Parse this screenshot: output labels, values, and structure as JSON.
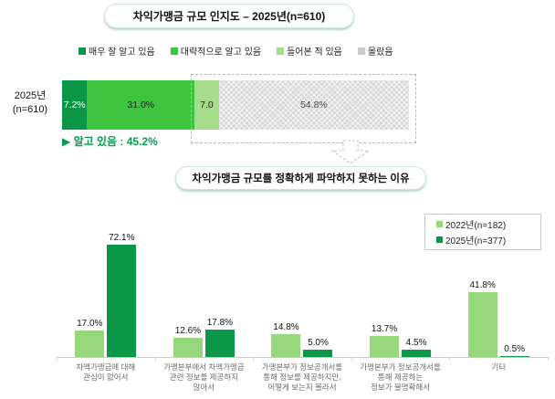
{
  "colors": {
    "dark_green": "#0c9648",
    "mid_green": "#3ec43e",
    "light_green": "#97d87c",
    "segment_light_green": "#a6dc8c",
    "unknown_gray": "#d8d8d8",
    "note_green": "#00a04e"
  },
  "chart_data": [
    {
      "type": "bar",
      "subtype": "horizontal-stacked",
      "title": "차익가맹금 규모 인지도 – 2025년(n=610)",
      "row_label": "2025년\n(n=610)",
      "xlim": [
        0,
        100
      ],
      "segments": [
        {
          "name": "매우 잘 알고 있음",
          "value": 7.2,
          "display": "7.2%",
          "color": "#0c9648",
          "text_color": "#ffffff",
          "hatched": false
        },
        {
          "name": "대략적으로 알고 있음",
          "value": 31.0,
          "display": "31.0%",
          "color": "#3ec43e",
          "text_color": "#1d1d1d",
          "hatched": false
        },
        {
          "name": "들어본 적 있음",
          "value": 7.0,
          "display": "7.0",
          "color": "#a6dc8c",
          "text_color": "#1d1d1d",
          "hatched": false
        },
        {
          "name": "몰랐음",
          "value": 54.8,
          "display": "54.8%",
          "color": "#d8d8d8",
          "text_color": "#4a4a4a",
          "hatched": true
        }
      ],
      "annotation": "▶ 알고 있음 : 45.2%",
      "legend_position": "top"
    },
    {
      "type": "bar",
      "title": "차익가맹금 규모를 정확하게 파악하지 못하는 이유",
      "categories": [
        "차액가맹금에 대해\n관심이 없어서",
        "가맹본부에서 차액가맹금\n관련 정보를 제공하지\n않아서",
        "가맹본부가 정보공개서를\n통해 정보를 제공하지만,\n어떻게 보는지 몰라서",
        "가맹본부가 정보공개서를\n통해 제공하는\n정보가 불명확해서",
        "기타"
      ],
      "series": [
        {
          "name": "2022년(n=182)",
          "color": "#97d87c",
          "values": [
            17.0,
            12.6,
            14.8,
            13.7,
            41.8
          ]
        },
        {
          "name": "2025년(n=377)",
          "color": "#0c9648",
          "values": [
            72.1,
            17.8,
            5.0,
            4.5,
            0.5
          ]
        }
      ],
      "value_suffix": "%",
      "ylim": [
        0,
        80
      ],
      "grid": false,
      "legend_position": "top-right"
    }
  ]
}
